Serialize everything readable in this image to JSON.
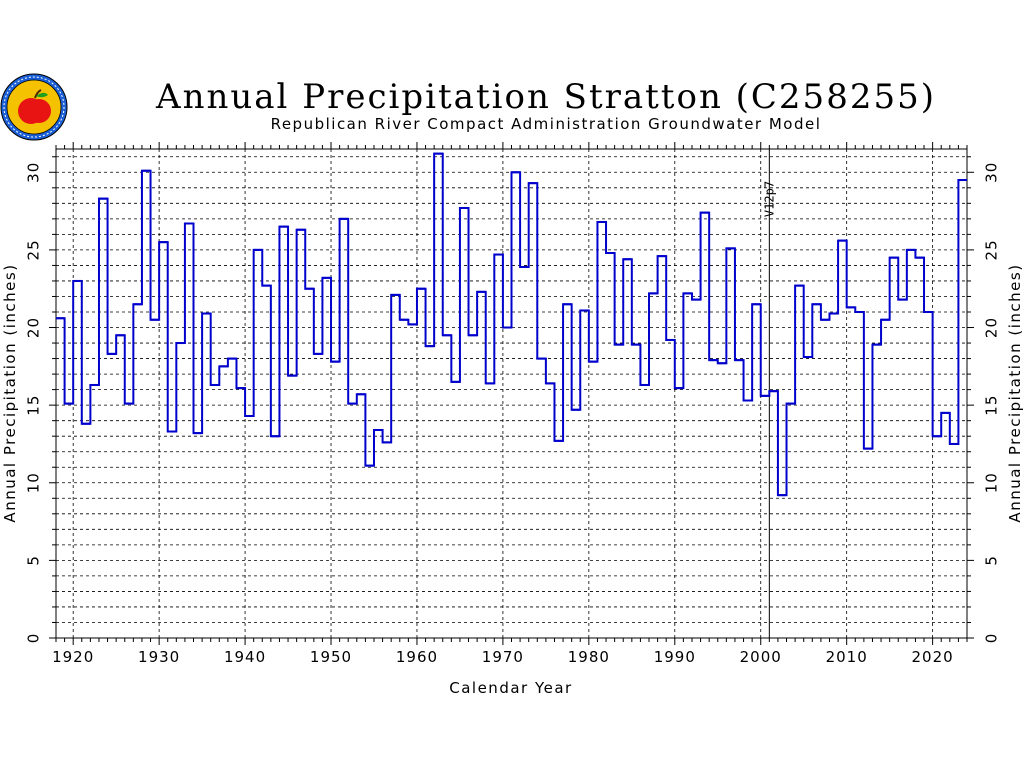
{
  "chart_data": {
    "type": "line",
    "step": true,
    "title": "Annual Precipitation Stratton (C258255)",
    "subtitle": "Republican River Compact Administration Groundwater Model",
    "xlabel": "Calendar Year",
    "ylabel": "Annual Precipitation (inches)",
    "xlim": [
      1918,
      2024
    ],
    "ylim": [
      0,
      31.5
    ],
    "x_ticks": [
      "1920",
      "1930",
      "1940",
      "1950",
      "1960",
      "1970",
      "1980",
      "1990",
      "2000",
      "2010",
      "2020"
    ],
    "y_ticks": [
      "0",
      "5",
      "10",
      "15",
      "20",
      "25",
      "30"
    ],
    "grid": true,
    "line_color": "#0000cc",
    "annotation": {
      "text": "V12p7",
      "x": 2001
    },
    "series": [
      {
        "x": [
          1918,
          1919,
          1920,
          1921,
          1922,
          1923,
          1924,
          1925,
          1926,
          1927,
          1928,
          1929,
          1930,
          1931,
          1932,
          1933,
          1934,
          1935,
          1936,
          1937,
          1938,
          1939,
          1940,
          1941,
          1942,
          1943,
          1944,
          1945,
          1946,
          1947,
          1948,
          1949,
          1950,
          1951,
          1952,
          1953,
          1954,
          1955,
          1956,
          1957,
          1958,
          1959,
          1960,
          1961,
          1962,
          1963,
          1964,
          1965,
          1966,
          1967,
          1968,
          1969,
          1970,
          1971,
          1972,
          1973,
          1974,
          1975,
          1976,
          1977,
          1978,
          1979,
          1980,
          1981,
          1982,
          1983,
          1984,
          1985,
          1986,
          1987,
          1988,
          1989,
          1990,
          1991,
          1992,
          1993,
          1994,
          1995,
          1996,
          1997,
          1998,
          1999,
          2000,
          2001,
          2002,
          2003,
          2004,
          2005,
          2006,
          2007,
          2008,
          2009,
          2010,
          2011,
          2012,
          2013,
          2014,
          2015,
          2016,
          2017,
          2018,
          2019,
          2020,
          2021,
          2022,
          2023
        ],
        "values": [
          20.6,
          15.1,
          23.0,
          13.8,
          16.3,
          28.3,
          18.3,
          19.5,
          15.1,
          21.5,
          30.1,
          20.5,
          25.5,
          13.3,
          19.0,
          26.7,
          13.2,
          20.9,
          16.3,
          17.5,
          18.0,
          16.1,
          14.3,
          25.0,
          22.7,
          13.0,
          26.5,
          16.9,
          26.3,
          22.5,
          18.3,
          23.2,
          17.8,
          27.0,
          15.1,
          15.7,
          11.1,
          13.4,
          12.6,
          22.1,
          20.5,
          20.2,
          22.5,
          18.8,
          31.2,
          19.5,
          16.5,
          27.7,
          19.5,
          22.3,
          16.4,
          24.7,
          20.0,
          30.0,
          23.9,
          29.3,
          18.0,
          16.4,
          12.7,
          21.5,
          14.7,
          21.1,
          17.8,
          26.8,
          24.8,
          18.9,
          24.4,
          18.9,
          16.3,
          22.2,
          24.6,
          19.2,
          16.1,
          22.2,
          21.8,
          27.4,
          17.9,
          17.7,
          25.1,
          17.9,
          15.3,
          21.5,
          15.6,
          15.9,
          9.2,
          15.1,
          22.7,
          18.1,
          21.5,
          20.5,
          20.9,
          25.6,
          21.3,
          21.0,
          12.2,
          18.9,
          20.5,
          24.5,
          21.8,
          25.0,
          24.5,
          21.0,
          13.0,
          14.5,
          12.5,
          29.5
        ]
      }
    ]
  }
}
